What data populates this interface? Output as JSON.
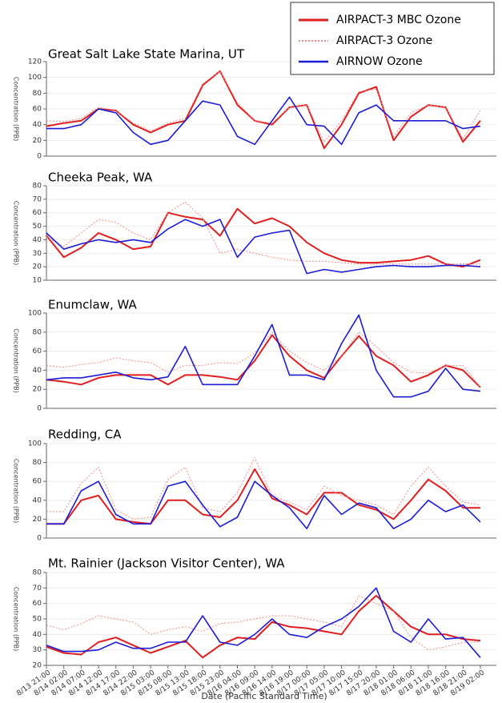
{
  "legend": [
    {
      "name": "AIRPACT-3 MBC Ozone",
      "color": "#e01e1e",
      "width": 2,
      "dash": "none"
    },
    {
      "name": "AIRPACT-3 Ozone",
      "color": "#f08a8a",
      "width": 1,
      "dash": "2,2"
    },
    {
      "name": "AIRNOW Ozone",
      "color": "#1c1cd8",
      "width": 1.6,
      "dash": "none"
    }
  ],
  "x_axis": {
    "label": "Date (Pacific Standard Time)",
    "categories": [
      "8/13 21:00",
      "8/14 02:00",
      "8/14 07:00",
      "8/14 12:00",
      "8/14 17:00",
      "8/14 22:00",
      "8/15 03:00",
      "8/15 08:00",
      "8/15 13:00",
      "8/15 18:00",
      "8/15 23:00",
      "8/16 04:00",
      "8/16 09:00",
      "8/16 14:00",
      "8/16 19:00",
      "8/17 00:00",
      "8/17 05:00",
      "8/17 10:00",
      "8/17 15:00",
      "8/17 20:00",
      "8/18 01:00",
      "8/18 06:00",
      "8/18 11:00",
      "8/18 16:00",
      "8/18 21:00",
      "8/19 02:00"
    ]
  },
  "chart_data": [
    {
      "type": "line",
      "title": "Great Salt Lake State Marina, UT",
      "y_label": "Concentration (PPB)",
      "ylim": [
        0,
        120
      ],
      "yticks": [
        0,
        20,
        40,
        60,
        80,
        100,
        120
      ],
      "grid": true,
      "series": [
        {
          "values": [
            38,
            42,
            45,
            60,
            58,
            40,
            30,
            40,
            45,
            90,
            108,
            65,
            45,
            40,
            62,
            65,
            10,
            40,
            80,
            88,
            20,
            50,
            65,
            62,
            18,
            45
          ]
        },
        {
          "values": [
            45,
            44,
            48,
            62,
            58,
            42,
            32,
            42,
            48,
            92,
            108,
            68,
            45,
            42,
            62,
            65,
            18,
            45,
            82,
            85,
            25,
            55,
            65,
            62,
            22,
            58
          ]
        },
        {
          "values": [
            35,
            35,
            40,
            60,
            55,
            30,
            15,
            20,
            45,
            70,
            65,
            25,
            15,
            45,
            75,
            40,
            38,
            15,
            55,
            65,
            45,
            45,
            45,
            45,
            35,
            38
          ]
        }
      ]
    },
    {
      "type": "line",
      "title": "Cheeka Peak, WA",
      "y_label": "Concentration (PPB)",
      "ylim": [
        10,
        80
      ],
      "yticks": [
        10,
        20,
        30,
        40,
        50,
        60,
        70,
        80
      ],
      "grid": true,
      "series": [
        {
          "values": [
            43,
            27,
            34,
            45,
            40,
            33,
            35,
            60,
            57,
            55,
            43,
            63,
            52,
            56,
            50,
            38,
            30,
            25,
            23,
            23,
            24,
            25,
            28,
            22,
            20,
            25
          ]
        },
        {
          "values": [
            42,
            35,
            45,
            55,
            53,
            45,
            40,
            60,
            68,
            56,
            30,
            33,
            30,
            27,
            25,
            24,
            24,
            23,
            22,
            22,
            22,
            22,
            22,
            22,
            22,
            22
          ]
        },
        {
          "values": [
            45,
            33,
            37,
            40,
            38,
            40,
            38,
            48,
            55,
            50,
            55,
            27,
            42,
            45,
            47,
            15,
            18,
            16,
            18,
            20,
            21,
            20,
            20,
            21,
            21,
            20
          ]
        }
      ]
    },
    {
      "type": "line",
      "title": "Enumclaw, WA",
      "y_label": "Concentration (PPB)",
      "ylim": [
        0,
        100
      ],
      "yticks": [
        0,
        20,
        40,
        60,
        80,
        100
      ],
      "grid": true,
      "series": [
        {
          "values": [
            30,
            28,
            25,
            32,
            35,
            35,
            35,
            25,
            35,
            35,
            33,
            30,
            50,
            77,
            55,
            40,
            32,
            55,
            76,
            55,
            45,
            28,
            35,
            45,
            40,
            22
          ]
        },
        {
          "values": [
            45,
            43,
            46,
            48,
            53,
            50,
            48,
            38,
            45,
            45,
            48,
            47,
            58,
            80,
            60,
            48,
            40,
            55,
            80,
            65,
            48,
            38,
            37,
            45,
            45,
            22
          ]
        },
        {
          "values": [
            30,
            32,
            32,
            35,
            38,
            32,
            30,
            33,
            65,
            25,
            25,
            25,
            55,
            88,
            35,
            35,
            30,
            68,
            98,
            40,
            12,
            12,
            18,
            42,
            20,
            18
          ]
        }
      ]
    },
    {
      "type": "line",
      "title": "Redding, CA",
      "y_label": "Concentration (PPB)",
      "ylim": [
        0,
        100
      ],
      "yticks": [
        0,
        20,
        40,
        60,
        80,
        100
      ],
      "grid": true,
      "series": [
        {
          "values": [
            15,
            15,
            40,
            45,
            20,
            17,
            15,
            40,
            40,
            25,
            22,
            40,
            73,
            42,
            35,
            25,
            48,
            48,
            35,
            30,
            20,
            40,
            62,
            50,
            32,
            32
          ]
        },
        {
          "values": [
            28,
            28,
            58,
            75,
            30,
            20,
            22,
            62,
            75,
            32,
            28,
            48,
            85,
            45,
            38,
            30,
            55,
            45,
            40,
            35,
            25,
            55,
            75,
            55,
            38,
            35
          ]
        },
        {
          "values": [
            15,
            15,
            50,
            60,
            25,
            15,
            15,
            55,
            60,
            35,
            12,
            22,
            60,
            45,
            32,
            10,
            45,
            25,
            37,
            32,
            10,
            20,
            40,
            28,
            35,
            17
          ]
        }
      ]
    },
    {
      "type": "line",
      "title": "Mt. Rainier (Jackson Visitor Center), WA",
      "y_label": "Concentration (PPB)",
      "ylim": [
        20,
        80
      ],
      "yticks": [
        20,
        30,
        40,
        50,
        60,
        70,
        80
      ],
      "grid": true,
      "series": [
        {
          "values": [
            32,
            28,
            27,
            35,
            38,
            33,
            28,
            32,
            36,
            25,
            33,
            38,
            37,
            48,
            45,
            44,
            42,
            40,
            55,
            65,
            55,
            45,
            40,
            40,
            37,
            36
          ]
        },
        {
          "values": [
            46,
            43,
            47,
            52,
            50,
            48,
            40,
            43,
            45,
            42,
            47,
            48,
            50,
            52,
            52,
            50,
            48,
            45,
            65,
            60,
            55,
            38,
            30,
            32,
            35,
            35
          ]
        },
        {
          "values": [
            33,
            29,
            29,
            30,
            35,
            31,
            31,
            35,
            35,
            52,
            35,
            33,
            40,
            50,
            40,
            38,
            45,
            50,
            58,
            70,
            42,
            35,
            50,
            37,
            38,
            25
          ]
        }
      ]
    }
  ]
}
